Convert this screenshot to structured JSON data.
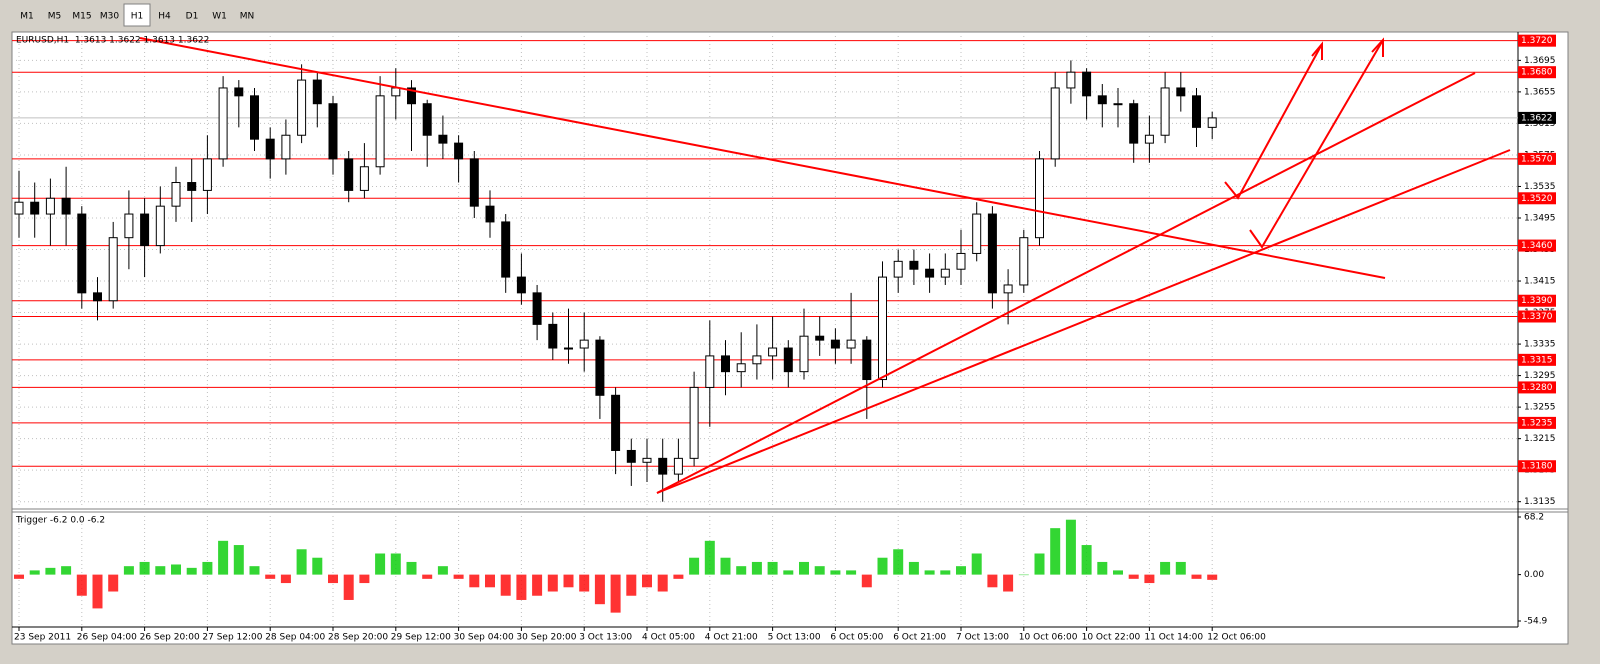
{
  "toolbar": {
    "timeframes": [
      "M1",
      "M5",
      "M15",
      "M30",
      "H1",
      "H4",
      "D1",
      "W1",
      "MN"
    ],
    "active_index": 4
  },
  "chart_data": [
    {
      "type": "candlestick",
      "title": "EURUSD,H1  1.3613 1.3622 1.3613 1.3622",
      "categories": [
        "23 Sep 2011",
        null,
        null,
        null,
        "26 Sep 04:00",
        null,
        null,
        null,
        "26 Sep 20:00",
        null,
        null,
        null,
        "27 Sep 12:00",
        null,
        null,
        null,
        "28 Sep 04:00",
        null,
        null,
        null,
        "28 Sep 20:00",
        null,
        null,
        null,
        "29 Sep 12:00",
        null,
        null,
        null,
        "30 Sep 04:00",
        null,
        null,
        null,
        "30 Sep 20:00",
        null,
        null,
        null,
        "3 Oct 13:00",
        null,
        null,
        null,
        "4 Oct 05:00",
        null,
        null,
        null,
        "4 Oct 21:00",
        null,
        null,
        null,
        "5 Oct 13:00",
        null,
        null,
        null,
        "6 Oct 05:00",
        null,
        null,
        null,
        "6 Oct 21:00",
        null,
        null,
        null,
        "7 Oct 13:00",
        null,
        null,
        null,
        "10 Oct 06:00",
        null,
        null,
        null,
        "10 Oct 22:00",
        null,
        null,
        null,
        "11 Oct 14:00",
        null,
        null,
        null,
        "12 Oct 06:00"
      ],
      "ohlc": [
        [
          1.35,
          1.3555,
          1.347,
          1.3515
        ],
        [
          1.3515,
          1.354,
          1.347,
          1.35
        ],
        [
          1.35,
          1.3545,
          1.346,
          1.352
        ],
        [
          1.352,
          1.356,
          1.346,
          1.35
        ],
        [
          1.35,
          1.351,
          1.338,
          1.34
        ],
        [
          1.34,
          1.342,
          1.3365,
          1.339
        ],
        [
          1.339,
          1.349,
          1.338,
          1.347
        ],
        [
          1.347,
          1.353,
          1.343,
          1.35
        ],
        [
          1.35,
          1.352,
          1.342,
          1.346
        ],
        [
          1.346,
          1.3535,
          1.345,
          1.351
        ],
        [
          1.351,
          1.356,
          1.349,
          1.354
        ],
        [
          1.354,
          1.357,
          1.349,
          1.353
        ],
        [
          1.353,
          1.36,
          1.35,
          1.357
        ],
        [
          1.357,
          1.3675,
          1.356,
          1.366
        ],
        [
          1.366,
          1.367,
          1.361,
          1.365
        ],
        [
          1.365,
          1.366,
          1.358,
          1.3595
        ],
        [
          1.3595,
          1.361,
          1.3545,
          1.357
        ],
        [
          1.357,
          1.362,
          1.355,
          1.36
        ],
        [
          1.36,
          1.369,
          1.359,
          1.367
        ],
        [
          1.367,
          1.368,
          1.361,
          1.364
        ],
        [
          1.364,
          1.365,
          1.355,
          1.357
        ],
        [
          1.357,
          1.358,
          1.3515,
          1.353
        ],
        [
          1.353,
          1.359,
          1.352,
          1.356
        ],
        [
          1.356,
          1.3675,
          1.355,
          1.365
        ],
        [
          1.365,
          1.3685,
          1.362,
          1.366
        ],
        [
          1.366,
          1.367,
          1.358,
          1.364
        ],
        [
          1.364,
          1.3645,
          1.356,
          1.36
        ],
        [
          1.36,
          1.3625,
          1.357,
          1.359
        ],
        [
          1.359,
          1.36,
          1.354,
          1.357
        ],
        [
          1.357,
          1.358,
          1.3495,
          1.351
        ],
        [
          1.351,
          1.353,
          1.347,
          1.349
        ],
        [
          1.349,
          1.35,
          1.34,
          1.342
        ],
        [
          1.342,
          1.345,
          1.3385,
          1.34
        ],
        [
          1.34,
          1.341,
          1.334,
          1.336
        ],
        [
          1.336,
          1.3375,
          1.3315,
          1.333
        ],
        [
          1.333,
          1.338,
          1.331,
          1.333
        ],
        [
          1.333,
          1.3375,
          1.33,
          1.334
        ],
        [
          1.334,
          1.3345,
          1.324,
          1.327
        ],
        [
          1.327,
          1.328,
          1.317,
          1.32
        ],
        [
          1.32,
          1.3215,
          1.3155,
          1.3185
        ],
        [
          1.3185,
          1.3215,
          1.316,
          1.319
        ],
        [
          1.319,
          1.3215,
          1.3135,
          1.317
        ],
        [
          1.317,
          1.3215,
          1.316,
          1.319
        ],
        [
          1.319,
          1.33,
          1.318,
          1.328
        ],
        [
          1.328,
          1.3365,
          1.323,
          1.332
        ],
        [
          1.332,
          1.334,
          1.327,
          1.33
        ],
        [
          1.33,
          1.335,
          1.328,
          1.331
        ],
        [
          1.331,
          1.336,
          1.329,
          1.332
        ],
        [
          1.332,
          1.337,
          1.329,
          1.333
        ],
        [
          1.333,
          1.334,
          1.328,
          1.33
        ],
        [
          1.33,
          1.338,
          1.329,
          1.3345
        ],
        [
          1.3345,
          1.337,
          1.332,
          1.334
        ],
        [
          1.334,
          1.3355,
          1.331,
          1.333
        ],
        [
          1.333,
          1.34,
          1.331,
          1.334
        ],
        [
          1.334,
          1.3345,
          1.324,
          1.329
        ],
        [
          1.329,
          1.344,
          1.328,
          1.342
        ],
        [
          1.342,
          1.3455,
          1.34,
          1.344
        ],
        [
          1.344,
          1.3455,
          1.341,
          1.343
        ],
        [
          1.343,
          1.345,
          1.34,
          1.342
        ],
        [
          1.342,
          1.345,
          1.341,
          1.343
        ],
        [
          1.343,
          1.348,
          1.341,
          1.345
        ],
        [
          1.345,
          1.3515,
          1.344,
          1.35
        ],
        [
          1.35,
          1.351,
          1.338,
          1.34
        ],
        [
          1.34,
          1.343,
          1.336,
          1.341
        ],
        [
          1.341,
          1.348,
          1.34,
          1.347
        ],
        [
          1.347,
          1.358,
          1.346,
          1.357
        ],
        [
          1.357,
          1.368,
          1.356,
          1.366
        ],
        [
          1.366,
          1.3695,
          1.364,
          1.368
        ],
        [
          1.368,
          1.3685,
          1.362,
          1.365
        ],
        [
          1.365,
          1.3665,
          1.361,
          1.364
        ],
        [
          1.364,
          1.366,
          1.361,
          1.364
        ],
        [
          1.364,
          1.3645,
          1.3565,
          1.359
        ],
        [
          1.359,
          1.3625,
          1.3565,
          1.36
        ],
        [
          1.36,
          1.368,
          1.359,
          1.366
        ],
        [
          1.366,
          1.368,
          1.363,
          1.365
        ],
        [
          1.365,
          1.366,
          1.3585,
          1.361
        ],
        [
          1.361,
          1.363,
          1.3595,
          1.3622
        ]
      ],
      "up_fill": "#ffffff",
      "down_fill": "#000000",
      "candle_stroke": "#000000",
      "ylim": [
        1.3127,
        1.3731
      ],
      "yticks": [
        1.3695,
        1.3655,
        1.3615,
        1.3575,
        1.3535,
        1.3495,
        1.3455,
        1.3415,
        1.3375,
        1.3335,
        1.3295,
        1.3255,
        1.3215,
        1.3175,
        1.3135
      ],
      "grid": true,
      "levels": [
        {
          "value": 1.372,
          "label": "1.3720"
        },
        {
          "value": 1.368,
          "label": "1.3680"
        },
        {
          "value": 1.357,
          "label": "1.3570"
        },
        {
          "value": 1.352,
          "label": "1.3520"
        },
        {
          "value": 1.346,
          "label": "1.3460"
        },
        {
          "value": 1.339,
          "label": "1.3390"
        },
        {
          "value": 1.337,
          "label": "1.3370"
        },
        1.3315,
        {
          "value": 1.328,
          "label": "1.3280"
        },
        1.3235,
        {
          "value": 1.318,
          "label": "1.3180"
        }
      ],
      "level_color": "#ff0000",
      "current_price": 1.3622
    },
    {
      "type": "histogram",
      "title": "Trigger -6.2 0.0 -6.2",
      "values": [
        -5,
        5,
        8,
        10,
        -25,
        -40,
        -20,
        10,
        15,
        10,
        12,
        8,
        15,
        40,
        35,
        10,
        -5,
        -10,
        30,
        20,
        -10,
        -30,
        -10,
        25,
        25,
        15,
        -5,
        10,
        -5,
        -15,
        -15,
        -25,
        -30,
        -25,
        -20,
        -15,
        -20,
        -35,
        -45,
        -25,
        -15,
        -20,
        -5,
        20,
        40,
        20,
        10,
        15,
        15,
        5,
        15,
        10,
        5,
        5,
        -15,
        20,
        30,
        15,
        5,
        5,
        10,
        25,
        -15,
        -20,
        0,
        25,
        55,
        65,
        35,
        15,
        5,
        -5,
        -10,
        15,
        15,
        -5,
        -6.2
      ],
      "positive_color": "#00cc00",
      "negative_color": "#ff0000",
      "ylim": [
        -54.9,
        68.2
      ],
      "yticks": [
        68.2,
        {
          "value": 0,
          "label": "0.00"
        },
        -54.9
      ]
    }
  ]
}
